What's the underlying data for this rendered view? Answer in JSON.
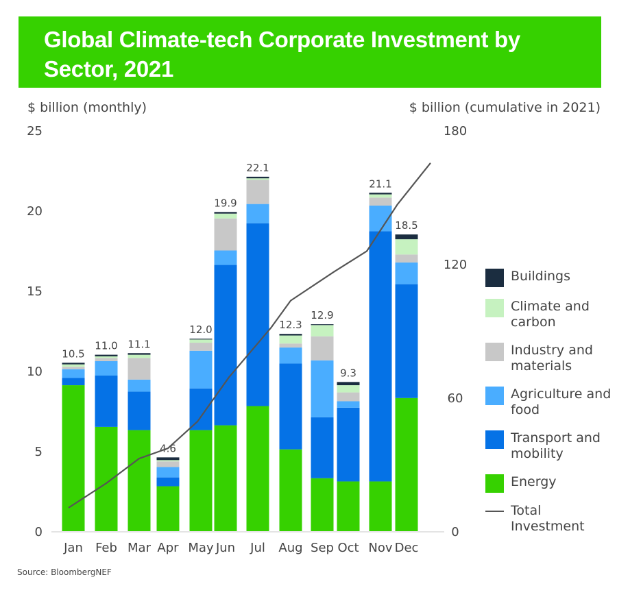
{
  "header": {
    "title": "Global Climate-tech Corporate Investment by Sector, 2021",
    "banner_color": "#36d100"
  },
  "source": "Source: BloombergNEF",
  "chart_data": {
    "type": "bar",
    "stacked": true,
    "title": "Global Climate-tech Corporate Investment by Sector, 2021",
    "xlabel": "",
    "ylabel": "$ billion (monthly)",
    "ylabel_right": "$ billion (cumulative in 2021)",
    "ylim": [
      0,
      25
    ],
    "ylim_right": [
      0,
      180
    ],
    "yticks": [
      0,
      5,
      10,
      15,
      20,
      25
    ],
    "yticks_right": [
      0,
      60,
      120,
      180
    ],
    "grid": false,
    "legend_position": "right",
    "categories": [
      "Jan",
      "Feb",
      "Mar",
      "Apr",
      "May",
      "Jun",
      "Jul",
      "Aug",
      "Sep",
      "Oct",
      "Nov",
      "Dec"
    ],
    "totals": [
      10.5,
      11.0,
      11.1,
      4.6,
      12.0,
      19.9,
      22.1,
      12.3,
      12.9,
      9.3,
      21.1,
      18.5
    ],
    "series": [
      {
        "name": "Energy",
        "color": "#36d100",
        "values": [
          9.1,
          6.5,
          6.3,
          2.8,
          6.3,
          6.6,
          7.8,
          5.1,
          3.3,
          3.1,
          3.1,
          8.3
        ]
      },
      {
        "name": "Transport and mobility",
        "color": "#0572e6",
        "values": [
          0.45,
          3.2,
          2.4,
          0.55,
          2.6,
          10.0,
          11.4,
          5.35,
          3.8,
          4.6,
          15.6,
          7.1
        ]
      },
      {
        "name": "Agriculture and food",
        "color": "#4aadff",
        "values": [
          0.55,
          0.9,
          0.75,
          0.65,
          2.35,
          0.9,
          1.2,
          1.0,
          3.55,
          0.4,
          1.6,
          1.35
        ]
      },
      {
        "name": "Industry and materials",
        "color": "#c8c8c8",
        "values": [
          0.15,
          0.2,
          1.35,
          0.35,
          0.5,
          2.0,
          1.5,
          0.25,
          1.5,
          0.55,
          0.5,
          0.5
        ]
      },
      {
        "name": "Climate and carbon",
        "color": "#c6f2c0",
        "values": [
          0.15,
          0.1,
          0.2,
          0.08,
          0.2,
          0.3,
          0.1,
          0.5,
          0.7,
          0.45,
          0.2,
          0.95
        ]
      },
      {
        "name": "Buildings",
        "color": "#1b2d40",
        "values": [
          0.1,
          0.1,
          0.1,
          0.17,
          0.05,
          0.1,
          0.1,
          0.1,
          0.05,
          0.2,
          0.1,
          0.3
        ]
      }
    ],
    "line_series": {
      "name": "Total Investment",
      "color": "#555555",
      "axis": "right",
      "values": [
        10.5,
        21.5,
        32.6,
        37.2,
        49.2,
        69.1,
        91.2,
        103.5,
        116.4,
        125.7,
        146.8,
        165.3
      ]
    },
    "legend": [
      {
        "label": "Buildings",
        "color": "#1b2d40",
        "kind": "box"
      },
      {
        "label": "Climate and carbon",
        "color": "#c6f2c0",
        "kind": "box"
      },
      {
        "label": "Industry and materials",
        "color": "#c8c8c8",
        "kind": "box"
      },
      {
        "label": "Agriculture and food",
        "color": "#4aadff",
        "kind": "box"
      },
      {
        "label": "Transport and mobility",
        "color": "#0572e6",
        "kind": "box"
      },
      {
        "label": "Energy",
        "color": "#36d100",
        "kind": "box"
      },
      {
        "label": "Total Investment",
        "color": "#555555",
        "kind": "line"
      }
    ]
  }
}
